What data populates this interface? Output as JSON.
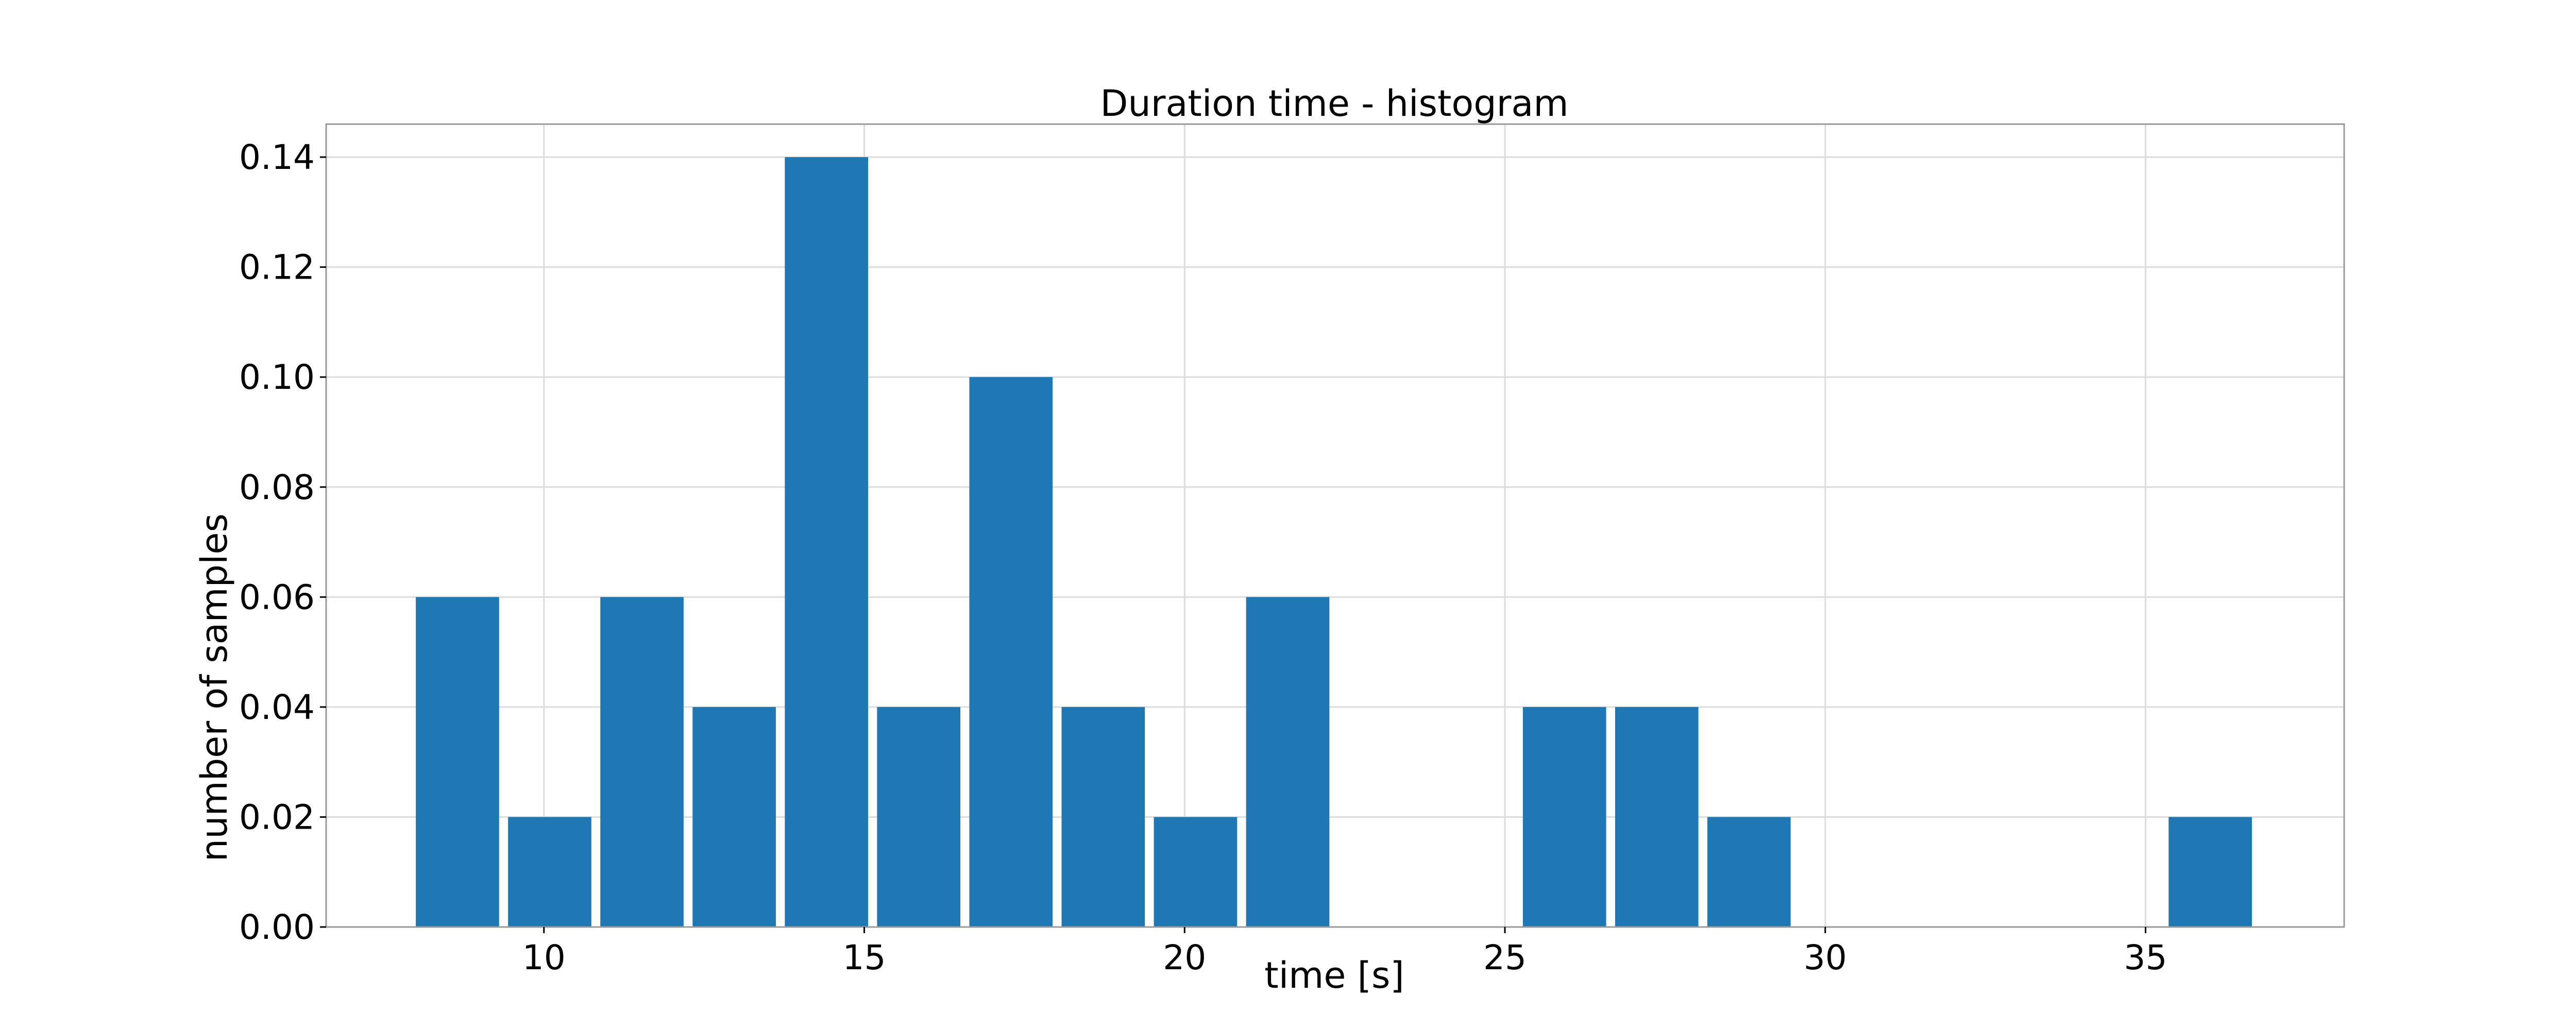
{
  "chart_data": {
    "type": "bar",
    "title": "Duration time - histogram",
    "xlabel": "time [s]",
    "ylabel": "number of samples",
    "xlim": [
      6.6,
      38.1
    ],
    "ylim": [
      0,
      0.146
    ],
    "xticks": [
      10,
      15,
      20,
      25,
      30,
      35
    ],
    "xtick_labels": [
      "10",
      "15",
      "20",
      "25",
      "30",
      "35"
    ],
    "yticks": [
      0,
      0.02,
      0.04,
      0.06,
      0.08,
      0.1,
      0.12,
      0.14
    ],
    "ytick_labels": [
      "0.00",
      "0.02",
      "0.04",
      "0.06",
      "0.08",
      "0.10",
      "0.12",
      "0.14"
    ],
    "grid": true,
    "bar_color": "#1f77b4",
    "bins": [
      {
        "x0": 8.0,
        "x1": 9.3,
        "value": 0.06
      },
      {
        "x0": 9.44,
        "x1": 10.74,
        "value": 0.02
      },
      {
        "x0": 10.88,
        "x1": 12.18,
        "value": 0.06
      },
      {
        "x0": 12.32,
        "x1": 13.62,
        "value": 0.04
      },
      {
        "x0": 13.76,
        "x1": 15.06,
        "value": 0.14
      },
      {
        "x0": 15.2,
        "x1": 16.5,
        "value": 0.04
      },
      {
        "x0": 16.64,
        "x1": 17.94,
        "value": 0.1
      },
      {
        "x0": 18.08,
        "x1": 19.38,
        "value": 0.04
      },
      {
        "x0": 19.52,
        "x1": 20.82,
        "value": 0.02
      },
      {
        "x0": 20.96,
        "x1": 22.26,
        "value": 0.06
      },
      {
        "x0": 25.28,
        "x1": 26.58,
        "value": 0.04
      },
      {
        "x0": 26.72,
        "x1": 28.02,
        "value": 0.04
      },
      {
        "x0": 28.16,
        "x1": 29.46,
        "value": 0.02
      },
      {
        "x0": 35.36,
        "x1": 36.66,
        "value": 0.02
      }
    ]
  }
}
